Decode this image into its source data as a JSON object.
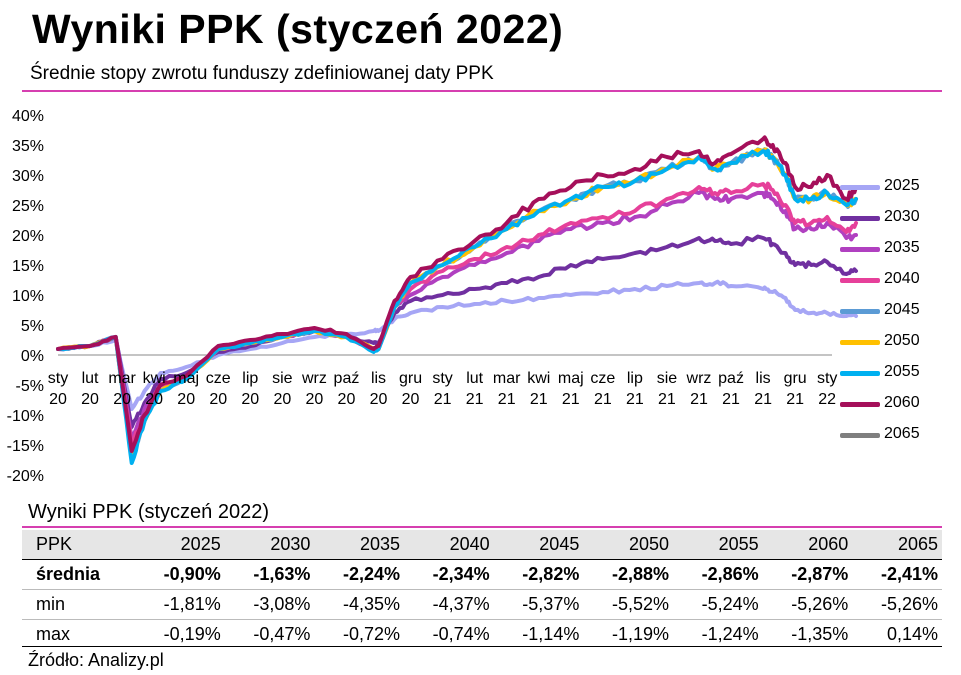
{
  "header": {
    "title": "Wyniki PPK (styczeń 2022)",
    "subtitle": "Średnie stopy zwrotu funduszy zdefiniowanej daty PPK"
  },
  "chart_data": {
    "type": "line",
    "title": "Średnie stopy zwrotu funduszy zdefiniowanej daty PPK",
    "ylim": [
      -20,
      40
    ],
    "y_ticks": [
      "40%",
      "35%",
      "30%",
      "25%",
      "20%",
      "15%",
      "10%",
      "5%",
      "0%",
      "-5%",
      "-10%",
      "-15%",
      "-20%"
    ],
    "x_ticks": [
      {
        "m": "sty",
        "y": "20"
      },
      {
        "m": "lut",
        "y": "20"
      },
      {
        "m": "mar",
        "y": "20"
      },
      {
        "m": "kwi",
        "y": "20"
      },
      {
        "m": "maj",
        "y": "20"
      },
      {
        "m": "cze",
        "y": "20"
      },
      {
        "m": "lip",
        "y": "20"
      },
      {
        "m": "sie",
        "y": "20"
      },
      {
        "m": "wrz",
        "y": "20"
      },
      {
        "m": "paź",
        "y": "20"
      },
      {
        "m": "lis",
        "y": "20"
      },
      {
        "m": "gru",
        "y": "20"
      },
      {
        "m": "sty",
        "y": "21"
      },
      {
        "m": "lut",
        "y": "21"
      },
      {
        "m": "mar",
        "y": "21"
      },
      {
        "m": "kwi",
        "y": "21"
      },
      {
        "m": "maj",
        "y": "21"
      },
      {
        "m": "cze",
        "y": "21"
      },
      {
        "m": "lip",
        "y": "21"
      },
      {
        "m": "sie",
        "y": "21"
      },
      {
        "m": "wrz",
        "y": "21"
      },
      {
        "m": "paź",
        "y": "21"
      },
      {
        "m": "lis",
        "y": "21"
      },
      {
        "m": "gru",
        "y": "21"
      },
      {
        "m": "sty",
        "y": "22"
      }
    ],
    "x": [
      0,
      1,
      1.8,
      2.3,
      2.7,
      3.2,
      4,
      5,
      6,
      7,
      8,
      9,
      9.85,
      10,
      10.5,
      11,
      12,
      13,
      14,
      15,
      16,
      17,
      18,
      19,
      20,
      20.5,
      21,
      22,
      22.3,
      22.7,
      23,
      23.5,
      24,
      24.6,
      24.9
    ],
    "series": [
      {
        "name": "2025",
        "color": "#a6a6f5",
        "values": [
          1,
          1.5,
          2.5,
          -9,
          -6,
          -3,
          -2,
          0,
          1,
          2,
          3,
          3.5,
          4,
          4,
          6,
          7,
          8,
          8.5,
          9,
          9.5,
          10,
          10.5,
          11,
          11.5,
          12,
          12,
          11.5,
          11,
          10.5,
          9.5,
          7.5,
          7,
          7,
          6.5,
          6.5
        ]
      },
      {
        "name": "2030",
        "color": "#7030a0",
        "values": [
          1,
          1.5,
          3,
          -12,
          -8,
          -4,
          -3,
          0.5,
          1.5,
          3,
          4,
          3,
          2,
          2,
          7,
          9,
          10,
          11,
          12,
          13,
          15,
          16,
          17,
          18,
          19.5,
          19,
          18.5,
          19.5,
          18.5,
          17,
          15,
          15,
          15.5,
          13.5,
          14
        ]
      },
      {
        "name": "2035",
        "color": "#b040c0",
        "values": [
          1,
          1.5,
          3,
          -14,
          -9,
          -5,
          -4,
          1,
          2,
          3,
          4,
          3,
          1,
          1,
          8,
          10,
          13,
          15,
          17,
          19,
          21,
          22,
          23,
          25,
          27,
          26,
          26,
          27,
          26,
          24,
          21,
          21,
          22,
          19.5,
          20
        ]
      },
      {
        "name": "2040",
        "color": "#e6409a",
        "values": [
          1,
          1.5,
          3,
          -15,
          -10,
          -5,
          -4,
          1,
          2,
          3,
          4,
          3,
          1,
          1,
          8,
          11,
          14,
          16,
          18,
          20,
          22,
          23,
          24,
          26,
          28,
          27,
          27,
          28.5,
          27.5,
          25,
          22,
          22,
          23,
          20.5,
          22
        ]
      },
      {
        "name": "2045",
        "color": "#5b9bd5",
        "values": [
          1,
          1.5,
          3,
          -17,
          -11,
          -6,
          -4,
          1,
          2,
          3,
          4,
          3,
          1,
          1,
          8,
          12,
          15,
          18,
          21,
          24,
          26,
          28,
          29,
          31,
          33,
          31,
          32,
          34,
          33,
          30,
          26,
          26,
          27,
          25,
          26
        ]
      },
      {
        "name": "2050",
        "color": "#ffc000",
        "values": [
          1,
          1.5,
          3,
          -17,
          -11,
          -6,
          -4,
          1,
          2,
          3,
          4,
          3,
          1,
          1,
          8,
          12,
          15,
          18,
          21,
          24,
          26,
          28,
          29,
          31,
          33,
          31,
          32,
          34,
          33,
          30,
          26,
          26,
          27,
          25,
          26
        ]
      },
      {
        "name": "2055",
        "color": "#00b0f0",
        "values": [
          1,
          1.5,
          3,
          -18,
          -11,
          -6,
          -4,
          1,
          2,
          3,
          4,
          3,
          0.5,
          1,
          8,
          12,
          15,
          18,
          21,
          24,
          26,
          28,
          29,
          31,
          33,
          31,
          32,
          34,
          33,
          30,
          26,
          26,
          27,
          25,
          26
        ]
      },
      {
        "name": "2060",
        "color": "#a50f5a",
        "values": [
          1,
          1.5,
          3,
          -16,
          -10,
          -5,
          -3.5,
          1.5,
          2.5,
          3.5,
          4.5,
          3.5,
          1,
          1.5,
          9,
          13,
          16,
          19,
          22,
          26,
          28,
          30,
          31,
          33,
          34,
          32,
          33.5,
          36,
          35,
          32,
          28,
          28,
          30,
          26,
          28
        ]
      },
      {
        "name": "2065",
        "color": "#7f7f7f",
        "values": [
          null,
          null,
          null,
          null,
          null,
          null,
          null,
          null,
          null,
          null,
          null,
          null,
          null,
          null,
          null,
          null,
          null,
          null,
          null,
          null,
          null,
          null,
          null,
          null,
          null,
          null,
          null,
          null,
          null,
          null,
          null,
          null,
          null,
          null,
          null
        ]
      }
    ]
  },
  "table": {
    "title": "Wyniki PPK (styczeń 2022)",
    "headers": [
      "PPK",
      "2025",
      "2030",
      "2035",
      "2040",
      "2045",
      "2050",
      "2055",
      "2060",
      "2065"
    ],
    "rows": [
      [
        "średnia",
        "-0,90%",
        "-1,63%",
        "-2,24%",
        "-2,34%",
        "-2,82%",
        "-2,88%",
        "-2,86%",
        "-2,87%",
        "-2,41%"
      ],
      [
        "min",
        "-1,81%",
        "-3,08%",
        "-4,35%",
        "-4,37%",
        "-5,37%",
        "-5,52%",
        "-5,24%",
        "-5,26%",
        "-5,26%"
      ],
      [
        "max",
        "-0,19%",
        "-0,47%",
        "-0,72%",
        "-0,74%",
        "-1,14%",
        "-1,19%",
        "-1,24%",
        "-1,35%",
        "0,14%"
      ]
    ]
  },
  "footer": {
    "source": "Źródło: Analizy.pl"
  }
}
